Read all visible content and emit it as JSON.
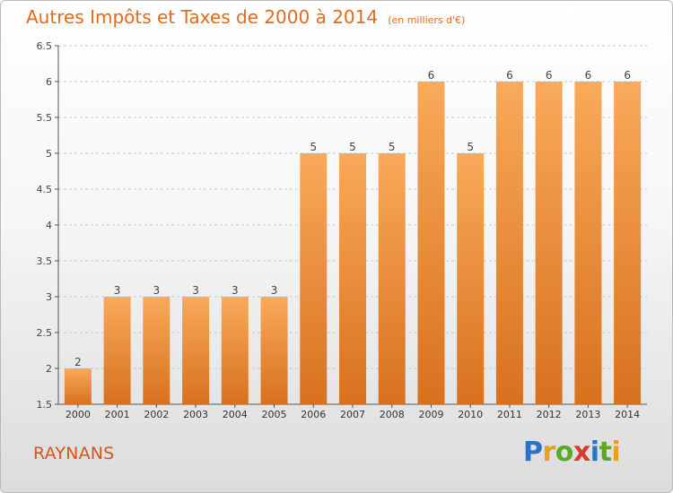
{
  "title": "Autres Impôts et Taxes de 2000 à 2014",
  "subtitle": "(en milliers d'€)",
  "commune": "RAYNANS",
  "logo": {
    "text": "Proxiti",
    "letters": [
      {
        "char": "P",
        "color": "#2a73c8"
      },
      {
        "char": "r",
        "color": "#e8a21a"
      },
      {
        "char": "o",
        "color": "#5aaa2a"
      },
      {
        "char": "x",
        "color": "#d93a2a"
      },
      {
        "char": "i",
        "color": "#2a73c8"
      },
      {
        "char": "t",
        "color": "#5aaa2a"
      },
      {
        "char": "i",
        "color": "#e8a21a"
      }
    ]
  },
  "colors": {
    "accent": "#e16a1d",
    "bar_top": "#f8aa5a",
    "bar_bottom": "#d8711e",
    "grid": "#c8c8c8"
  },
  "chart_data": {
    "type": "bar",
    "title": "Autres Impôts et Taxes de 2000 à 2014",
    "subtitle": "(en milliers d'€)",
    "categories": [
      "2000",
      "2001",
      "2002",
      "2003",
      "2004",
      "2005",
      "2006",
      "2007",
      "2008",
      "2009",
      "2010",
      "2011",
      "2012",
      "2013",
      "2014"
    ],
    "values": [
      2,
      3,
      3,
      3,
      3,
      3,
      5,
      5,
      5,
      6,
      5,
      6,
      6,
      6,
      6
    ],
    "data_labels": [
      "2",
      "3",
      "3",
      "3",
      "3",
      "3",
      "5",
      "5",
      "5",
      "6",
      "5",
      "6",
      "6",
      "6",
      "6"
    ],
    "ylim": [
      1.5,
      6.5
    ],
    "yticks": [
      1.5,
      2,
      2.5,
      3,
      3.5,
      4,
      4.5,
      5,
      5.5,
      6,
      6.5
    ],
    "ytick_labels": [
      "1.5",
      "2",
      "2.5",
      "3",
      "3.5",
      "4",
      "4.5",
      "5",
      "5.5",
      "6",
      "6.5"
    ],
    "grid": true,
    "xlabel": "",
    "ylabel": ""
  }
}
